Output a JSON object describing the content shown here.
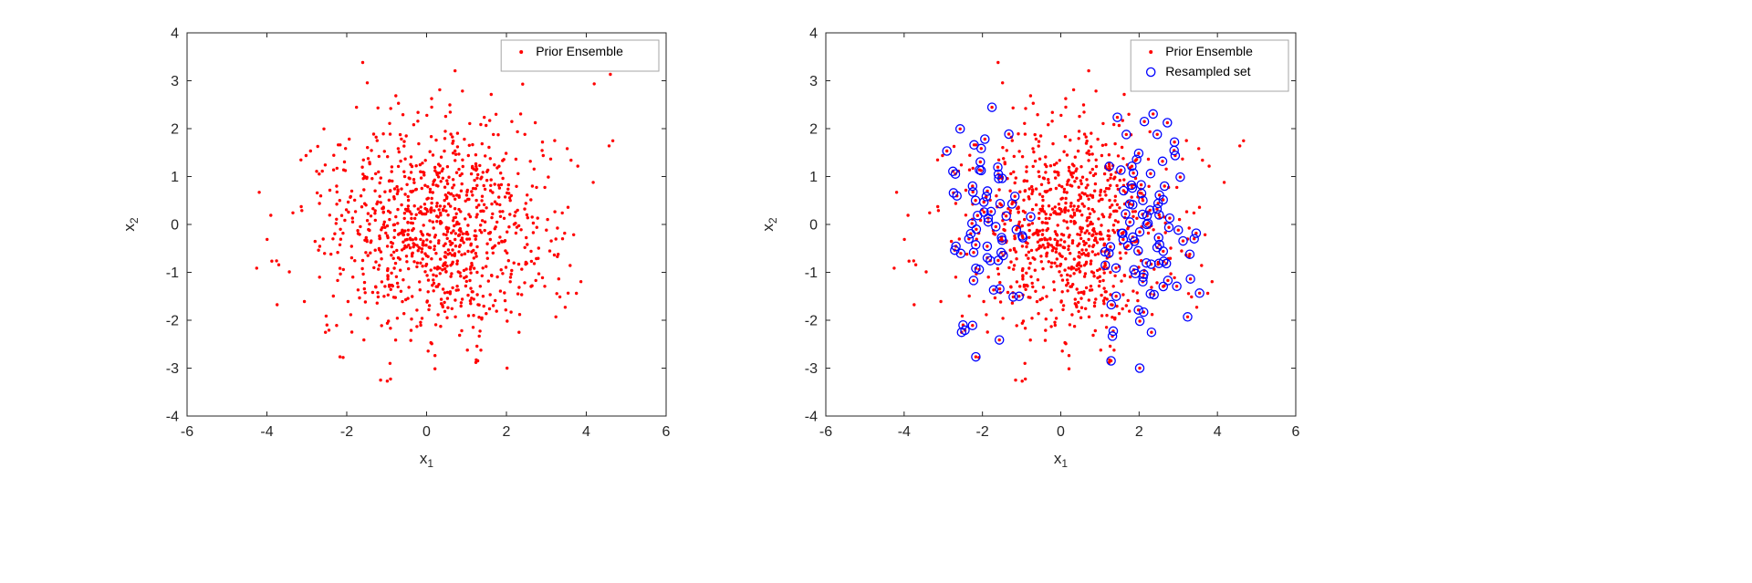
{
  "figure": {
    "background": "#ffffff",
    "axis_color": "#262626",
    "tick_color": "#262626",
    "tick_label_color": "#262626",
    "axis_label_color": "#262626",
    "legend_border_color": "#a6a6a6",
    "legend_background": "#ffffff",
    "grid": false
  },
  "chart_data": [
    {
      "type": "scatter",
      "title": "",
      "xlabel": {
        "base": "x",
        "sub": "1"
      },
      "ylabel": {
        "base": "x",
        "sub": "2"
      },
      "xlim": [
        -6,
        6
      ],
      "ylim": [
        -4,
        4
      ],
      "xticks": [
        -6,
        -4,
        -2,
        0,
        2,
        4,
        6
      ],
      "yticks": [
        -4,
        -3,
        -2,
        -1,
        0,
        1,
        2,
        3,
        4
      ],
      "legend": {
        "position": "top-right",
        "entries": [
          "Prior Ensemble"
        ]
      },
      "series": [
        {
          "name": "Prior Ensemble",
          "marker": "dot",
          "color": "#ff0000",
          "marker_radius": 1.7,
          "generator": {
            "kind": "gaussian",
            "id": "prior",
            "seed": 1234567,
            "n": 1000,
            "mean": [
              0.3,
              -0.05
            ],
            "std": [
              1.5,
              1.15
            ]
          }
        }
      ]
    },
    {
      "type": "scatter",
      "title": "",
      "xlabel": {
        "base": "x",
        "sub": "1"
      },
      "ylabel": {
        "base": "x",
        "sub": "2"
      },
      "xlim": [
        -6,
        6
      ],
      "ylim": [
        -4,
        4
      ],
      "xticks": [
        -6,
        -4,
        -2,
        0,
        2,
        4,
        6
      ],
      "yticks": [
        -4,
        -3,
        -2,
        -1,
        0,
        1,
        2,
        3,
        4
      ],
      "legend": {
        "position": "top-right",
        "entries": [
          "Prior Ensemble",
          "Resampled set"
        ]
      },
      "series": [
        {
          "name": "Prior Ensemble",
          "marker": "dot",
          "color": "#ff0000",
          "marker_radius": 1.7,
          "generator": {
            "kind": "gaussian",
            "id": "prior",
            "seed": 1234567,
            "n": 1000,
            "mean": [
              0.3,
              -0.05
            ],
            "std": [
              1.5,
              1.15
            ]
          }
        },
        {
          "name": "Resampled set",
          "marker": "open-circle",
          "color": "#0000ff",
          "marker_radius": 4.6,
          "stroke_width": 1.3,
          "generator": {
            "kind": "weighted_resample",
            "seed": 424242,
            "n": 160,
            "source": "prior",
            "weight_centers_x1": [
              -2.2,
              2.5
            ],
            "weight_sigma": 0.55
          }
        }
      ]
    }
  ]
}
